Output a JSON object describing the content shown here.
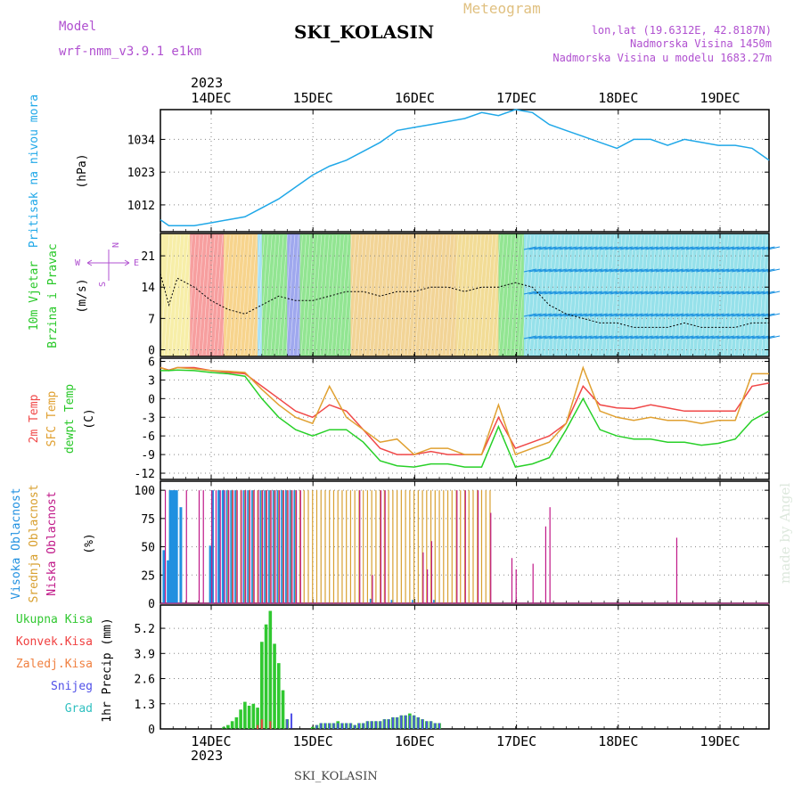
{
  "header": {
    "model_label": "Model",
    "model_value": "wrf-nmm_v3.9.1  e1km",
    "station": "SKI_KOLASIN",
    "chart_title": "Meteogram",
    "lonlat": "lon,lat (19.6312E, 42.8187N)",
    "elev": "Nadmorska Visina 1450m",
    "elev_model": "Nadmorska Visina u modelu 1683.27m",
    "year": "2023",
    "footer_station": "SKI_KOLASIN",
    "watermark": "made by Angel"
  },
  "x_axis": {
    "day_labels": [
      "14DEC",
      "15DEC",
      "16DEC",
      "17DEC",
      "18DEC",
      "19DEC"
    ],
    "year_label": "2023",
    "range_hours": [
      0,
      144
    ]
  },
  "colors": {
    "pressure": "#20a8e8",
    "t2m": "#f04848",
    "sfc": "#e0a030",
    "dewpt": "#28d028",
    "high_cloud": "#2090e0",
    "mid_cloud": "#d8a030",
    "low_cloud": "#c01888",
    "total_precip": "#30c830",
    "conv_precip": "#f04040",
    "frozen_precip": "#f08040",
    "snow": "#5050e8",
    "graupel": "#30c0c0"
  },
  "chart_data": [
    {
      "type": "line",
      "panel": "pressure",
      "ylabel_left": "Pritisak na nivou mora",
      "ylabel_unit": "(hPa)",
      "yticks": [
        1012,
        1023,
        1034
      ],
      "ylim": [
        1003,
        1044
      ],
      "x": [
        0,
        2,
        4,
        8,
        12,
        16,
        20,
        24,
        28,
        32,
        36,
        40,
        44,
        48,
        52,
        56,
        60,
        64,
        68,
        72,
        76,
        80,
        84,
        88,
        92,
        96,
        100,
        104,
        108,
        112,
        116,
        120,
        124,
        128,
        132,
        136,
        140,
        144
      ],
      "values": [
        1007,
        1005,
        1005,
        1005,
        1006,
        1007,
        1008,
        1011,
        1014,
        1018,
        1022,
        1025,
        1027,
        1030,
        1033,
        1037,
        1038,
        1039,
        1040,
        1041,
        1043,
        1042,
        1044,
        1043,
        1039,
        1037,
        1035,
        1033,
        1031,
        1034,
        1034,
        1032,
        1034,
        1033,
        1032,
        1032,
        1031,
        1027
      ],
      "grid": true
    },
    {
      "type": "line",
      "panel": "wind",
      "ylabel_left": "10m Vjetar",
      "ylabel_left2": "Brzina i Pravac",
      "ylabel_unit": "(m/s)",
      "compass": [
        "N",
        "E",
        "S",
        "W"
      ],
      "yticks": [
        0,
        7,
        14,
        21
      ],
      "ylim": [
        -1.5,
        26
      ],
      "x": [
        0,
        2,
        4,
        8,
        12,
        16,
        20,
        24,
        28,
        32,
        36,
        40,
        44,
        48,
        52,
        56,
        60,
        64,
        68,
        72,
        76,
        80,
        84,
        88,
        92,
        96,
        100,
        104,
        108,
        112,
        116,
        120,
        124,
        128,
        132,
        136,
        140,
        144
      ],
      "values": [
        17,
        10,
        16,
        14,
        11,
        9,
        8,
        10,
        12,
        11,
        11,
        12,
        13,
        13,
        12,
        13,
        13,
        14,
        14,
        13,
        14,
        14,
        15,
        14,
        10,
        8,
        7,
        6,
        6,
        5,
        5,
        5,
        6,
        5,
        5,
        5,
        6,
        6
      ],
      "grid": true
    },
    {
      "type": "line",
      "panel": "temperature",
      "ylabel_left": "2m Temp",
      "ylabel_left2": "SFC Temp",
      "ylabel_left3": "dewpt Temp",
      "ylabel_unit": "(C)",
      "yticks": [
        -12,
        -9,
        -6,
        -3,
        0,
        3,
        6
      ],
      "ylim": [
        -13,
        6.5
      ],
      "x": [
        0,
        2,
        4,
        8,
        12,
        16,
        20,
        24,
        28,
        32,
        36,
        40,
        44,
        48,
        52,
        56,
        60,
        64,
        68,
        72,
        76,
        80,
        84,
        88,
        92,
        96,
        100,
        104,
        108,
        112,
        116,
        120,
        124,
        128,
        132,
        136,
        140,
        144
      ],
      "series": [
        {
          "name": "2m Temp",
          "values": [
            5,
            4.6,
            5,
            5,
            4.5,
            4.2,
            4,
            2,
            0,
            -2,
            -3,
            -1,
            -2,
            -5,
            -8,
            -9,
            -9,
            -8.5,
            -9,
            -9,
            -9,
            -3,
            -8,
            -7,
            -6,
            -4,
            2,
            -1,
            -1.5,
            -1.6,
            -1,
            -1.5,
            -2,
            -2,
            -2,
            -2,
            2,
            2.5
          ]
        },
        {
          "name": "SFC Temp",
          "values": [
            5,
            4.5,
            5,
            4.8,
            4.5,
            4.4,
            4.2,
            1.5,
            -1,
            -3,
            -4,
            2,
            -3,
            -5,
            -7,
            -6.5,
            -9,
            -8,
            -8,
            -9,
            -9,
            -1,
            -9,
            -8,
            -7,
            -4,
            5,
            -2,
            -3,
            -3.5,
            -3,
            -3.5,
            -3.5,
            -4,
            -3.5,
            -3.5,
            4,
            4
          ]
        },
        {
          "name": "dewpt Temp",
          "values": [
            4.5,
            4.5,
            4.6,
            4.5,
            4.2,
            4,
            3.6,
            0,
            -3,
            -5,
            -6,
            -5,
            -5,
            -7,
            -10,
            -10.8,
            -11,
            -10.5,
            -10.5,
            -11,
            -11,
            -4.5,
            -11,
            -10.5,
            -9.5,
            -5,
            0,
            -5,
            -6,
            -6.5,
            -6.5,
            -7,
            -7,
            -7.5,
            -7.2,
            -6.5,
            -3.5,
            -2
          ]
        }
      ],
      "grid": true
    },
    {
      "type": "bar",
      "panel": "clouds",
      "ylabel_left": "Visoka Oblacnost",
      "ylabel_left2": "Srednja Oblacnost",
      "ylabel_left3": "Niska Oblacnost",
      "ylabel_unit": "(%)",
      "yticks": [
        0,
        25,
        50,
        75,
        100
      ],
      "ylim": [
        0,
        108
      ],
      "series": [
        {
          "name": "Visoka Oblacnost",
          "x": [
            1,
            2,
            2.5,
            3,
            3.5,
            4,
            5,
            12,
            12.5,
            14,
            15,
            16,
            17,
            18,
            20,
            21,
            22,
            24,
            25,
            26,
            27,
            28,
            29,
            30,
            31,
            32,
            50,
            55,
            60,
            65
          ],
          "values": [
            47,
            38,
            100,
            100,
            100,
            100,
            85,
            51,
            100,
            100,
            100,
            100,
            100,
            100,
            100,
            100,
            100,
            100,
            100,
            100,
            100,
            100,
            100,
            100,
            100,
            100,
            4,
            3,
            3,
            3
          ]
        },
        {
          "name": "Srednja Oblacnost",
          "x": [
            16,
            17,
            18,
            19,
            20,
            21,
            22,
            23,
            24,
            25,
            26,
            27,
            28,
            29,
            30,
            31,
            32,
            33,
            34,
            35,
            36,
            37,
            38,
            39,
            40,
            41,
            42,
            43,
            44,
            45,
            46,
            47,
            48,
            49,
            50,
            51,
            52,
            53,
            54,
            55,
            56,
            57,
            58,
            59,
            60,
            61,
            62,
            63,
            64,
            65,
            66,
            67,
            68,
            69,
            70,
            71,
            72,
            73,
            74,
            75,
            76,
            77,
            78
          ],
          "values": [
            100,
            100,
            100,
            100,
            100,
            100,
            100,
            100,
            100,
            100,
            100,
            100,
            100,
            100,
            100,
            100,
            100,
            100,
            100,
            100,
            100,
            100,
            100,
            100,
            100,
            100,
            100,
            100,
            100,
            100,
            100,
            100,
            100,
            100,
            100,
            100,
            100,
            100,
            100,
            100,
            100,
            100,
            100,
            100,
            100,
            100,
            100,
            100,
            100,
            100,
            100,
            100,
            100,
            100,
            100,
            100,
            100,
            100,
            100,
            100,
            100,
            100,
            100
          ]
        },
        {
          "name": "Niska Oblacnost",
          "x": [
            1,
            6,
            9,
            10,
            12,
            13,
            14,
            15,
            16,
            17,
            18,
            19,
            20,
            21,
            22,
            23,
            24,
            25,
            26,
            27,
            28,
            29,
            30,
            31,
            32,
            33,
            47,
            50,
            52,
            53,
            62,
            63,
            64,
            70,
            72,
            75,
            78,
            83,
            84,
            88,
            91,
            92,
            122
          ],
          "values": [
            100,
            100,
            100,
            100,
            100,
            100,
            100,
            100,
            100,
            100,
            100,
            100,
            100,
            100,
            100,
            100,
            100,
            100,
            100,
            100,
            100,
            100,
            100,
            100,
            100,
            100,
            100,
            25,
            100,
            100,
            45,
            30,
            55,
            100,
            100,
            100,
            80,
            40,
            30,
            35,
            68,
            85,
            58
          ]
        }
      ],
      "grid": true
    },
    {
      "type": "bar",
      "panel": "precip",
      "legend": [
        "Ukupna Kisa",
        "Konvek.Kisa",
        "Zaledj.Kisa",
        "Snijeg",
        "Grad"
      ],
      "ylabel_unit": "1hr Precip (mm)",
      "yticks": [
        0,
        1.3,
        2.6,
        3.9,
        5.2
      ],
      "ylim": [
        0,
        6.4
      ],
      "series": [
        {
          "name": "Ukupna Kisa",
          "x": [
            15,
            16,
            17,
            18,
            19,
            20,
            21,
            22,
            23,
            24,
            25,
            26,
            27,
            28,
            29,
            30,
            36,
            37,
            38,
            39,
            40,
            41,
            42,
            43,
            44,
            45,
            46,
            47,
            48,
            49,
            50,
            51,
            52,
            53,
            54,
            55,
            56,
            57,
            58,
            59,
            60,
            61,
            62,
            63,
            64,
            65,
            66
          ],
          "values": [
            0.1,
            0.2,
            0.4,
            0.6,
            1.0,
            1.4,
            1.2,
            1.3,
            1.1,
            4.5,
            5.4,
            6.1,
            4.4,
            3.4,
            2.0,
            0.5,
            0.1,
            0.2,
            0.3,
            0.3,
            0.3,
            0.3,
            0.4,
            0.3,
            0.3,
            0.3,
            0.2,
            0.3,
            0.3,
            0.4,
            0.4,
            0.4,
            0.4,
            0.5,
            0.5,
            0.6,
            0.6,
            0.7,
            0.7,
            0.8,
            0.7,
            0.6,
            0.5,
            0.4,
            0.4,
            0.3,
            0.3
          ]
        },
        {
          "name": "Konvek.Kisa",
          "x": [
            23,
            24,
            26,
            30
          ],
          "values": [
            0.2,
            0.5,
            0.4,
            0.2
          ]
        },
        {
          "name": "Snijeg",
          "x": [
            30,
            31,
            37,
            38,
            39,
            40,
            41,
            42,
            43,
            44,
            45,
            46,
            47,
            48,
            49,
            50,
            51,
            52,
            53,
            54,
            55,
            56,
            57,
            58,
            59,
            60,
            61,
            62,
            63,
            64,
            65,
            66
          ],
          "values": [
            0.5,
            0.8,
            0.2,
            0.3,
            0.3,
            0.3,
            0.3,
            0.3,
            0.3,
            0.3,
            0.3,
            0.2,
            0.3,
            0.3,
            0.4,
            0.4,
            0.4,
            0.4,
            0.5,
            0.5,
            0.6,
            0.6,
            0.7,
            0.7,
            0.7,
            0.7,
            0.6,
            0.5,
            0.4,
            0.4,
            0.3,
            0.3
          ]
        }
      ],
      "grid": true
    }
  ]
}
